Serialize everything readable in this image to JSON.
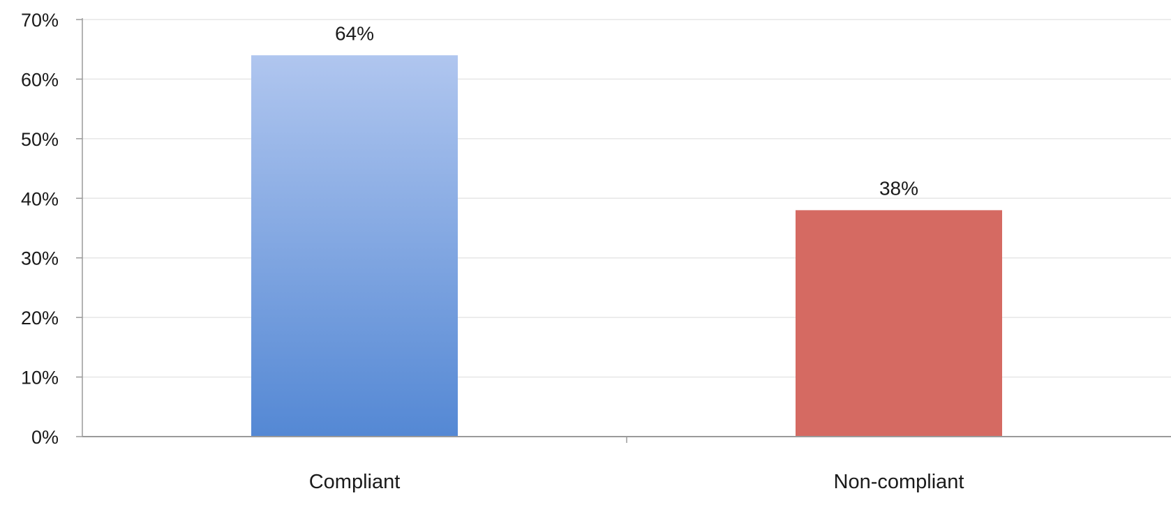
{
  "chart_data": {
    "type": "bar",
    "title": "",
    "xlabel": "",
    "ylabel": "",
    "categories": [
      "Compliant",
      "Non-compliant"
    ],
    "values": [
      64,
      38
    ],
    "data_labels": [
      "64%",
      "38%"
    ],
    "ylim": [
      0,
      70
    ],
    "yticks": [
      0,
      10,
      20,
      30,
      40,
      50,
      60,
      70
    ],
    "ytick_labels": [
      "0%",
      "10%",
      "20%",
      "30%",
      "40%",
      "50%",
      "60%",
      "70%"
    ],
    "grid": true,
    "legend": false,
    "colors": {
      "compliant_top": "#b0c6ef",
      "compliant_bottom": "#5488d4",
      "non_compliant": "#d56a62",
      "gridline": "#e6e6e6",
      "axis": "#9a9a9a"
    }
  }
}
